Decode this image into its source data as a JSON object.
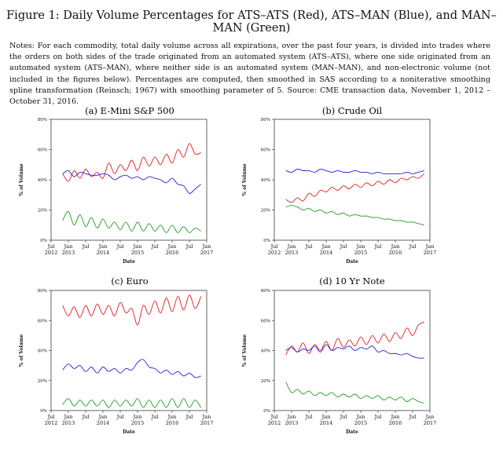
{
  "figure": {
    "title": "Figure 1: Daily Volume Percentages for ATS–ATS (Red), ATS–MAN (Blue), and MAN–MAN (Green)",
    "notes": "Notes: For each commodity, total daily volume across all expirations, over the past four years, is divided into trades where the orders on both sides of the trade originated from an automated system (ATS–ATS), where one side originated from an automated system (ATS–MAN), where neither side is an automated system (MAN–MAN), and non-electronic volume (not included in the figures below). Percentages are computed, then smoothed in SAS according to a noniterative smoothing spline transformation (Reinsch; 1967) with smoothing parameter of 5. Source: CME transaction data, November 1, 2012 – October 31, 2016."
  },
  "chart_data": [
    {
      "type": "line",
      "title": "(a) E-Mini S&P 500",
      "xlabel": "Date",
      "ylabel": "% of Volume",
      "ylim": [
        0,
        80
      ],
      "yticks": [
        "0%",
        "20%",
        "40%",
        "60%",
        "80%"
      ],
      "xticks": [
        {
          "month": "Jul",
          "year": "2012"
        },
        {
          "month": "Jan",
          "year": "2013"
        },
        {
          "month": "Jul",
          "year": ""
        },
        {
          "month": "Jan",
          "year": "2014"
        },
        {
          "month": "Jul",
          "year": ""
        },
        {
          "month": "Jan",
          "year": "2015"
        },
        {
          "month": "Jul",
          "year": ""
        },
        {
          "month": "Jan",
          "year": "2016"
        },
        {
          "month": "Jul",
          "year": ""
        },
        {
          "month": "Jan",
          "year": "2017"
        }
      ],
      "x": [
        "2012-11",
        "2013-01",
        "2013-03",
        "2013-05",
        "2013-07",
        "2013-09",
        "2013-11",
        "2014-01",
        "2014-03",
        "2014-05",
        "2014-07",
        "2014-09",
        "2014-11",
        "2015-01",
        "2015-03",
        "2015-05",
        "2015-07",
        "2015-09",
        "2015-11",
        "2016-01",
        "2016-03",
        "2016-05",
        "2016-07",
        "2016-09",
        "2016-11"
      ],
      "series": [
        {
          "color": "#e31a1c",
          "values": [
            44,
            39,
            46,
            41,
            47,
            42,
            45,
            41,
            51,
            44,
            50,
            46,
            53,
            46,
            55,
            49,
            55,
            50,
            57,
            51,
            60,
            55,
            64,
            57,
            58
          ]
        },
        {
          "color": "#1f1fd6",
          "values": [
            44,
            46,
            42,
            45,
            44,
            43,
            43,
            44,
            43,
            40,
            42,
            43,
            41,
            42,
            40,
            42,
            41,
            40,
            38,
            41,
            37,
            36,
            31,
            34,
            37
          ]
        },
        {
          "color": "#1f9a1f",
          "values": [
            13,
            19,
            10,
            17,
            9,
            15,
            8,
            14,
            8,
            12,
            7,
            12,
            6,
            12,
            6,
            11,
            6,
            10,
            5,
            10,
            5,
            9,
            5,
            8,
            6
          ]
        }
      ]
    },
    {
      "type": "line",
      "title": "(b) Crude Oil",
      "xlabel": "Date",
      "ylabel": "% of Volume",
      "ylim": [
        0,
        80
      ],
      "yticks": [
        "0%",
        "20%",
        "40%",
        "60%",
        "80%"
      ],
      "xticks": [
        {
          "month": "Jul",
          "year": "2012"
        },
        {
          "month": "Jan",
          "year": "2013"
        },
        {
          "month": "Jul",
          "year": ""
        },
        {
          "month": "Jan",
          "year": "2014"
        },
        {
          "month": "Jul",
          "year": ""
        },
        {
          "month": "Jan",
          "year": "2015"
        },
        {
          "month": "Jul",
          "year": ""
        },
        {
          "month": "Jan",
          "year": "2016"
        },
        {
          "month": "Jul",
          "year": ""
        },
        {
          "month": "Jan",
          "year": "2017"
        }
      ],
      "x": [
        "2012-11",
        "2013-01",
        "2013-03",
        "2013-05",
        "2013-07",
        "2013-09",
        "2013-11",
        "2014-01",
        "2014-03",
        "2014-05",
        "2014-07",
        "2014-09",
        "2014-11",
        "2015-01",
        "2015-03",
        "2015-05",
        "2015-07",
        "2015-09",
        "2015-11",
        "2016-01",
        "2016-03",
        "2016-05",
        "2016-07",
        "2016-09",
        "2016-11"
      ],
      "series": [
        {
          "color": "#e31a1c",
          "values": [
            27,
            25,
            28,
            26,
            31,
            29,
            33,
            32,
            35,
            33,
            36,
            34,
            37,
            35,
            38,
            36,
            39,
            37,
            40,
            38,
            41,
            40,
            42,
            41,
            44
          ]
        },
        {
          "color": "#1f1fd6",
          "values": [
            46,
            45,
            47,
            46,
            46,
            45,
            47,
            46,
            45,
            46,
            45,
            45,
            46,
            45,
            45,
            44,
            45,
            44,
            44,
            44,
            44,
            45,
            44,
            45,
            46
          ]
        },
        {
          "color": "#1f9a1f",
          "values": [
            22,
            23,
            22,
            20,
            21,
            19,
            20,
            18,
            19,
            17,
            18,
            16,
            17,
            16,
            16,
            15,
            15,
            14,
            14,
            13,
            13,
            12,
            12,
            11,
            10
          ]
        }
      ]
    },
    {
      "type": "line",
      "title": "(c) Euro",
      "xlabel": "Date",
      "ylabel": "% of Volume",
      "ylim": [
        0,
        80
      ],
      "yticks": [
        "0%",
        "20%",
        "40%",
        "60%",
        "80%"
      ],
      "xticks": [
        {
          "month": "Jul",
          "year": "2012"
        },
        {
          "month": "Jan",
          "year": "2013"
        },
        {
          "month": "Jul",
          "year": ""
        },
        {
          "month": "Jan",
          "year": "2014"
        },
        {
          "month": "Jul",
          "year": ""
        },
        {
          "month": "Jan",
          "year": "2015"
        },
        {
          "month": "Jul",
          "year": ""
        },
        {
          "month": "Jan",
          "year": "2016"
        },
        {
          "month": "Jul",
          "year": ""
        },
        {
          "month": "Jan",
          "year": "2017"
        }
      ],
      "x": [
        "2012-11",
        "2013-01",
        "2013-03",
        "2013-05",
        "2013-07",
        "2013-09",
        "2013-11",
        "2014-01",
        "2014-03",
        "2014-05",
        "2014-07",
        "2014-09",
        "2014-11",
        "2015-01",
        "2015-03",
        "2015-05",
        "2015-07",
        "2015-09",
        "2015-11",
        "2016-01",
        "2016-03",
        "2016-05",
        "2016-07",
        "2016-09",
        "2016-11"
      ],
      "series": [
        {
          "color": "#e31a1c",
          "values": [
            70,
            63,
            69,
            62,
            70,
            63,
            71,
            64,
            70,
            63,
            72,
            65,
            68,
            57,
            70,
            64,
            73,
            65,
            75,
            66,
            76,
            67,
            77,
            68,
            76
          ]
        },
        {
          "color": "#1f1fd6",
          "values": [
            27,
            31,
            28,
            30,
            26,
            29,
            25,
            29,
            26,
            28,
            25,
            28,
            27,
            32,
            34,
            29,
            28,
            25,
            27,
            24,
            26,
            23,
            25,
            22,
            23
          ]
        },
        {
          "color": "#1f9a1f",
          "values": [
            4,
            8,
            3,
            7,
            3,
            7,
            3,
            7,
            2,
            7,
            3,
            7,
            3,
            8,
            2,
            7,
            2,
            7,
            2,
            8,
            2,
            8,
            2,
            7,
            2
          ]
        }
      ]
    },
    {
      "type": "line",
      "title": "(d) 10 Yr Note",
      "xlabel": "Date",
      "ylabel": "% of Volume",
      "ylim": [
        0,
        80
      ],
      "yticks": [
        "0%",
        "20%",
        "40%",
        "60%",
        "80%"
      ],
      "xticks": [
        {
          "month": "Jul",
          "year": "2012"
        },
        {
          "month": "Jan",
          "year": "2013"
        },
        {
          "month": "Jul",
          "year": ""
        },
        {
          "month": "Jan",
          "year": "2014"
        },
        {
          "month": "Jul",
          "year": ""
        },
        {
          "month": "Jan",
          "year": "2015"
        },
        {
          "month": "Jul",
          "year": ""
        },
        {
          "month": "Jan",
          "year": "2016"
        },
        {
          "month": "Jul",
          "year": ""
        },
        {
          "month": "Jan",
          "year": "2017"
        }
      ],
      "x": [
        "2012-11",
        "2013-01",
        "2013-03",
        "2013-05",
        "2013-07",
        "2013-09",
        "2013-11",
        "2014-01",
        "2014-03",
        "2014-05",
        "2014-07",
        "2014-09",
        "2014-11",
        "2015-01",
        "2015-03",
        "2015-05",
        "2015-07",
        "2015-09",
        "2015-11",
        "2016-01",
        "2016-03",
        "2016-05",
        "2016-07",
        "2016-09",
        "2016-11"
      ],
      "series": [
        {
          "color": "#e31a1c",
          "values": [
            37,
            43,
            39,
            45,
            38,
            44,
            40,
            46,
            40,
            48,
            42,
            47,
            43,
            49,
            44,
            50,
            45,
            51,
            46,
            52,
            48,
            55,
            50,
            57,
            59
          ]
        },
        {
          "color": "#1f1fd6",
          "values": [
            40,
            42,
            39,
            41,
            40,
            43,
            39,
            44,
            40,
            42,
            41,
            43,
            40,
            42,
            41,
            43,
            39,
            40,
            38,
            38,
            37,
            38,
            36,
            35,
            35
          ]
        },
        {
          "color": "#1f9a1f",
          "values": [
            19,
            12,
            14,
            11,
            13,
            10,
            12,
            10,
            12,
            9,
            11,
            9,
            11,
            8,
            10,
            8,
            10,
            7,
            9,
            7,
            9,
            6,
            8,
            6,
            5
          ]
        }
      ]
    }
  ]
}
